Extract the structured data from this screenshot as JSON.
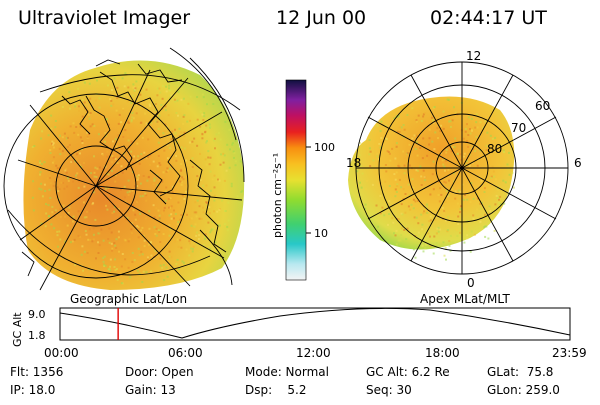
{
  "header": {
    "title": "Ultraviolet Imager",
    "date": "12 Jun 00",
    "time": "02:44:17 UT"
  },
  "colorbar": {
    "tick_100": "100",
    "tick_10": "10",
    "unit_label": "photon cm⁻²s⁻¹"
  },
  "geo_panel": {
    "label": "Geographic Lat/Lon"
  },
  "polar_panel": {
    "label": "Apex MLat/MLT",
    "mlt_12": "12",
    "mlt_18": "18",
    "mlt_6": "6",
    "mlt_0": "0",
    "lat_60": "60",
    "lat_70": "70",
    "lat_80": "80"
  },
  "altitude_plot": {
    "ylabel": "GC Alt",
    "ymax": "9.0",
    "ymin": "1.8",
    "ticks": [
      "00:00",
      "06:00",
      "12:00",
      "18:00",
      "23:59"
    ],
    "marker_time_fraction": 0.114
  },
  "status": {
    "flt": "Flt: 1356",
    "ip": "IP: 18.0",
    "door": "Door: Open",
    "gain": "Gain: 13",
    "mode": "Mode: Normal",
    "dsp": "Dsp:    5.2",
    "gcalt": "GC Alt: 6.2 Re",
    "seq": "Seq: 30",
    "glat": "GLat:  75.8",
    "glon": "GLon: 259.0"
  },
  "colors": {
    "aurora_orange": "#f0a028",
    "aurora_yellow": "#f0d840",
    "aurora_green": "#9ed84a",
    "marker_red": "#e00000"
  }
}
